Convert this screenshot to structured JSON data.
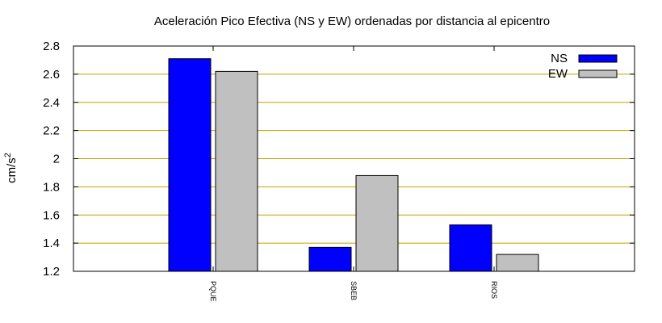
{
  "chart_data": {
    "type": "bar",
    "title": "Aceleración Pico Efectiva (NS y EW) ordenadas por distancia al epicentro",
    "ylabel": "cm/s",
    "ylabel_sup": "2",
    "xlabel": "",
    "categories": [
      "PQUE",
      "SBEB",
      "RIOS"
    ],
    "series": [
      {
        "name": "NS",
        "color": "#0000ff",
        "values": [
          2.71,
          1.37,
          1.53
        ]
      },
      {
        "name": "EW",
        "color": "#c0c0c0",
        "values": [
          2.62,
          1.88,
          1.32
        ]
      }
    ],
    "ylim": [
      1.2,
      2.8
    ],
    "yticks": [
      "1.2",
      "1.4",
      "1.6",
      "1.8",
      "2",
      "2.2",
      "2.4",
      "2.6",
      "2.8"
    ],
    "grid": true,
    "grid_color": "#c8a000",
    "legend_position": "top-right"
  }
}
